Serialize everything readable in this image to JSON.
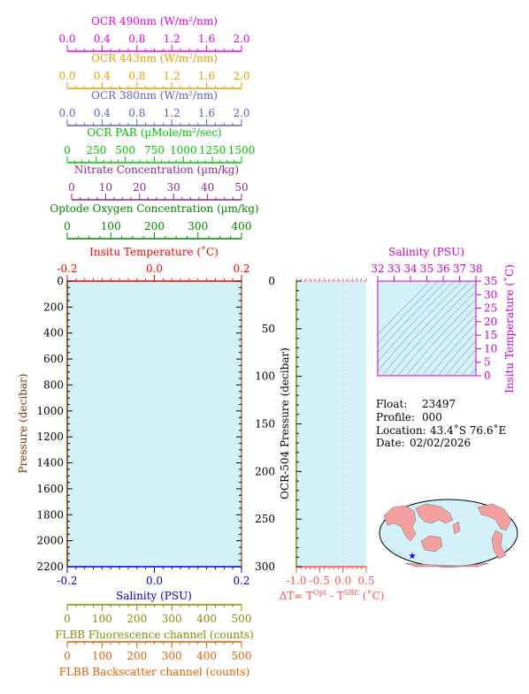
{
  "chart_data": [
    {
      "type": "axis-stack",
      "axes": [
        {
          "label": "OCR 490nm (W/m²/nm)",
          "ticks": [
            "0.0",
            "0.4",
            "0.8",
            "1.2",
            "1.6",
            "2.0"
          ],
          "range": [
            0,
            2.0
          ],
          "color": "#e600e6"
        },
        {
          "label": "OCR 443nm (W/m²/nm)",
          "ticks": [
            "0.0",
            "0.4",
            "0.8",
            "1.2",
            "1.6",
            "2.0"
          ],
          "range": [
            0,
            2.0
          ],
          "color": "#e6a000"
        },
        {
          "label": "OCR 380nm (W/m²/nm)",
          "ticks": [
            "0.0",
            "0.4",
            "0.8",
            "1.2",
            "1.6",
            "2.0"
          ],
          "range": [
            0,
            2.0
          ],
          "color": "#6060c0"
        },
        {
          "label": "OCR PAR (µMole/m²/sec)",
          "ticks": [
            "0",
            "250",
            "500",
            "750",
            "1000",
            "1250",
            "1500"
          ],
          "range": [
            0,
            1500
          ],
          "color": "#00c000"
        },
        {
          "label": "Nitrate Concentration (µm/kg)",
          "ticks": [
            "0",
            "10",
            "20",
            "30",
            "40",
            "50"
          ],
          "range": [
            0,
            50
          ],
          "color": "#8a2a8a"
        },
        {
          "label": "Optode Oxygen Concentration (µm/kg)",
          "ticks": [
            "0",
            "100",
            "200",
            "300",
            "400"
          ],
          "range": [
            0,
            400
          ],
          "color": "#008800"
        }
      ]
    },
    {
      "type": "line",
      "title": "",
      "x_top": {
        "label": "Insitu Temperature (˚C)",
        "ticks": [
          "-0.2",
          "0.0",
          "0.2"
        ],
        "range": [
          -0.2,
          0.2
        ],
        "color": "#ff0000"
      },
      "x_bottom": {
        "label": "Salinity (PSU)",
        "ticks": [
          "-0.2",
          "0.0",
          "0.2"
        ],
        "range": [
          -0.2,
          0.2
        ],
        "color": "#0000cc"
      },
      "ylabel": "Pressure (decibar)",
      "yticks": [
        "0",
        "200",
        "400",
        "600",
        "800",
        "1000",
        "1200",
        "1400",
        "1600",
        "1800",
        "2000",
        "2200"
      ],
      "ylim": [
        0,
        2200
      ],
      "y_inverted": true,
      "series": [],
      "background": "#d4f0f8"
    },
    {
      "type": "line",
      "ylabel": "OCR-504 Pressure (decibar)",
      "yticks": [
        "0",
        "50",
        "100",
        "150",
        "200",
        "250",
        "300"
      ],
      "ylim": [
        0,
        300
      ],
      "y_inverted": true,
      "x_bottom": {
        "label": "ΔT= TOpt - TSBE (˚C)",
        "label_main": "ΔT= T",
        "sup1": "Opt",
        "label_mid": " - T",
        "sup2": "SBE",
        "label_end": " (˚C)",
        "ticks": [
          "-1.0",
          "-0.5",
          "0.0",
          "0.5"
        ],
        "range": [
          -1.0,
          0.5
        ],
        "color": "#ff5050"
      },
      "series": [],
      "background": "#d4f0f8"
    },
    {
      "type": "contour",
      "x_top": {
        "label": "Salinity (PSU)",
        "ticks": [
          "32",
          "33",
          "34",
          "35",
          "36",
          "37",
          "38"
        ],
        "range": [
          32,
          38
        ],
        "color": "#cc00cc"
      },
      "y_right": {
        "label": "Insitu Temperature (˚C)",
        "ticks": [
          "0",
          "5",
          "10",
          "15",
          "20",
          "25",
          "30",
          "35"
        ],
        "range": [
          0,
          35
        ],
        "color": "#cc00cc"
      },
      "background": "#d4f0f8"
    },
    {
      "type": "bottom-axes",
      "axes": [
        {
          "label": "FLBB Fluorescence channel (counts)",
          "ticks": [
            "0",
            "100",
            "200",
            "300",
            "400",
            "500"
          ],
          "range": [
            0,
            500
          ],
          "color": "#8a8a00"
        },
        {
          "label": "FLBB Backscatter channel (counts)",
          "ticks": [
            "0",
            "100",
            "200",
            "300",
            "400",
            "500"
          ],
          "range": [
            0,
            500
          ],
          "color": "#e06000"
        }
      ]
    }
  ],
  "info": {
    "float_label": "Float:",
    "float_value": "23497",
    "profile_label": "Profile:",
    "profile_value": "000",
    "location_label": "Location:",
    "location_value": "43.4˚S  76.6˚E",
    "date_label": "Date:",
    "date_value": "02/02/2026"
  },
  "map": {
    "ocean_color": "#d4f0f8",
    "land_color": "#f4a0a0",
    "marker_color": "#0000ff"
  }
}
